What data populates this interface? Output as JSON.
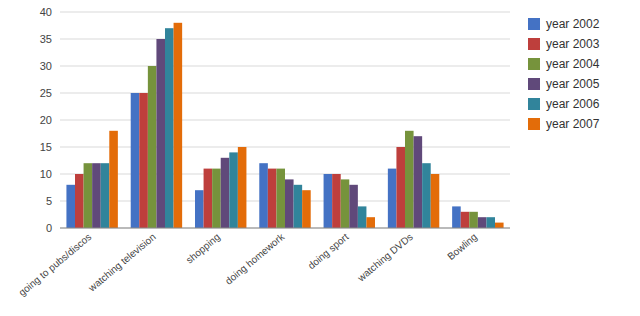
{
  "chart_data": {
    "type": "bar",
    "categories": [
      "going to pubs/discos",
      "watching television",
      "shopping",
      "doing homework",
      "doing sport",
      "watching DVDs",
      "Bowling"
    ],
    "series": [
      {
        "name": "year 2002",
        "color": "#4472C4",
        "values": [
          8,
          25,
          7,
          12,
          10,
          11,
          4
        ]
      },
      {
        "name": "year 2003",
        "color": "#BE3F3C",
        "values": [
          10,
          25,
          11,
          11,
          10,
          15,
          3
        ]
      },
      {
        "name": "year 2004",
        "color": "#76933C",
        "values": [
          12,
          30,
          11,
          11,
          9,
          18,
          3
        ]
      },
      {
        "name": "year 2005",
        "color": "#60497A",
        "values": [
          12,
          35,
          13,
          9,
          8,
          17,
          2
        ]
      },
      {
        "name": "year 2006",
        "color": "#31849B",
        "values": [
          12,
          37,
          14,
          8,
          4,
          12,
          2
        ]
      },
      {
        "name": "year 2007",
        "color": "#E36C09",
        "values": [
          18,
          38,
          15,
          7,
          2,
          10,
          1
        ]
      }
    ],
    "ylim": [
      0,
      40
    ],
    "yticks": [
      0,
      5,
      10,
      15,
      20,
      25,
      30,
      35,
      40
    ],
    "grid": true,
    "legend": "right"
  }
}
